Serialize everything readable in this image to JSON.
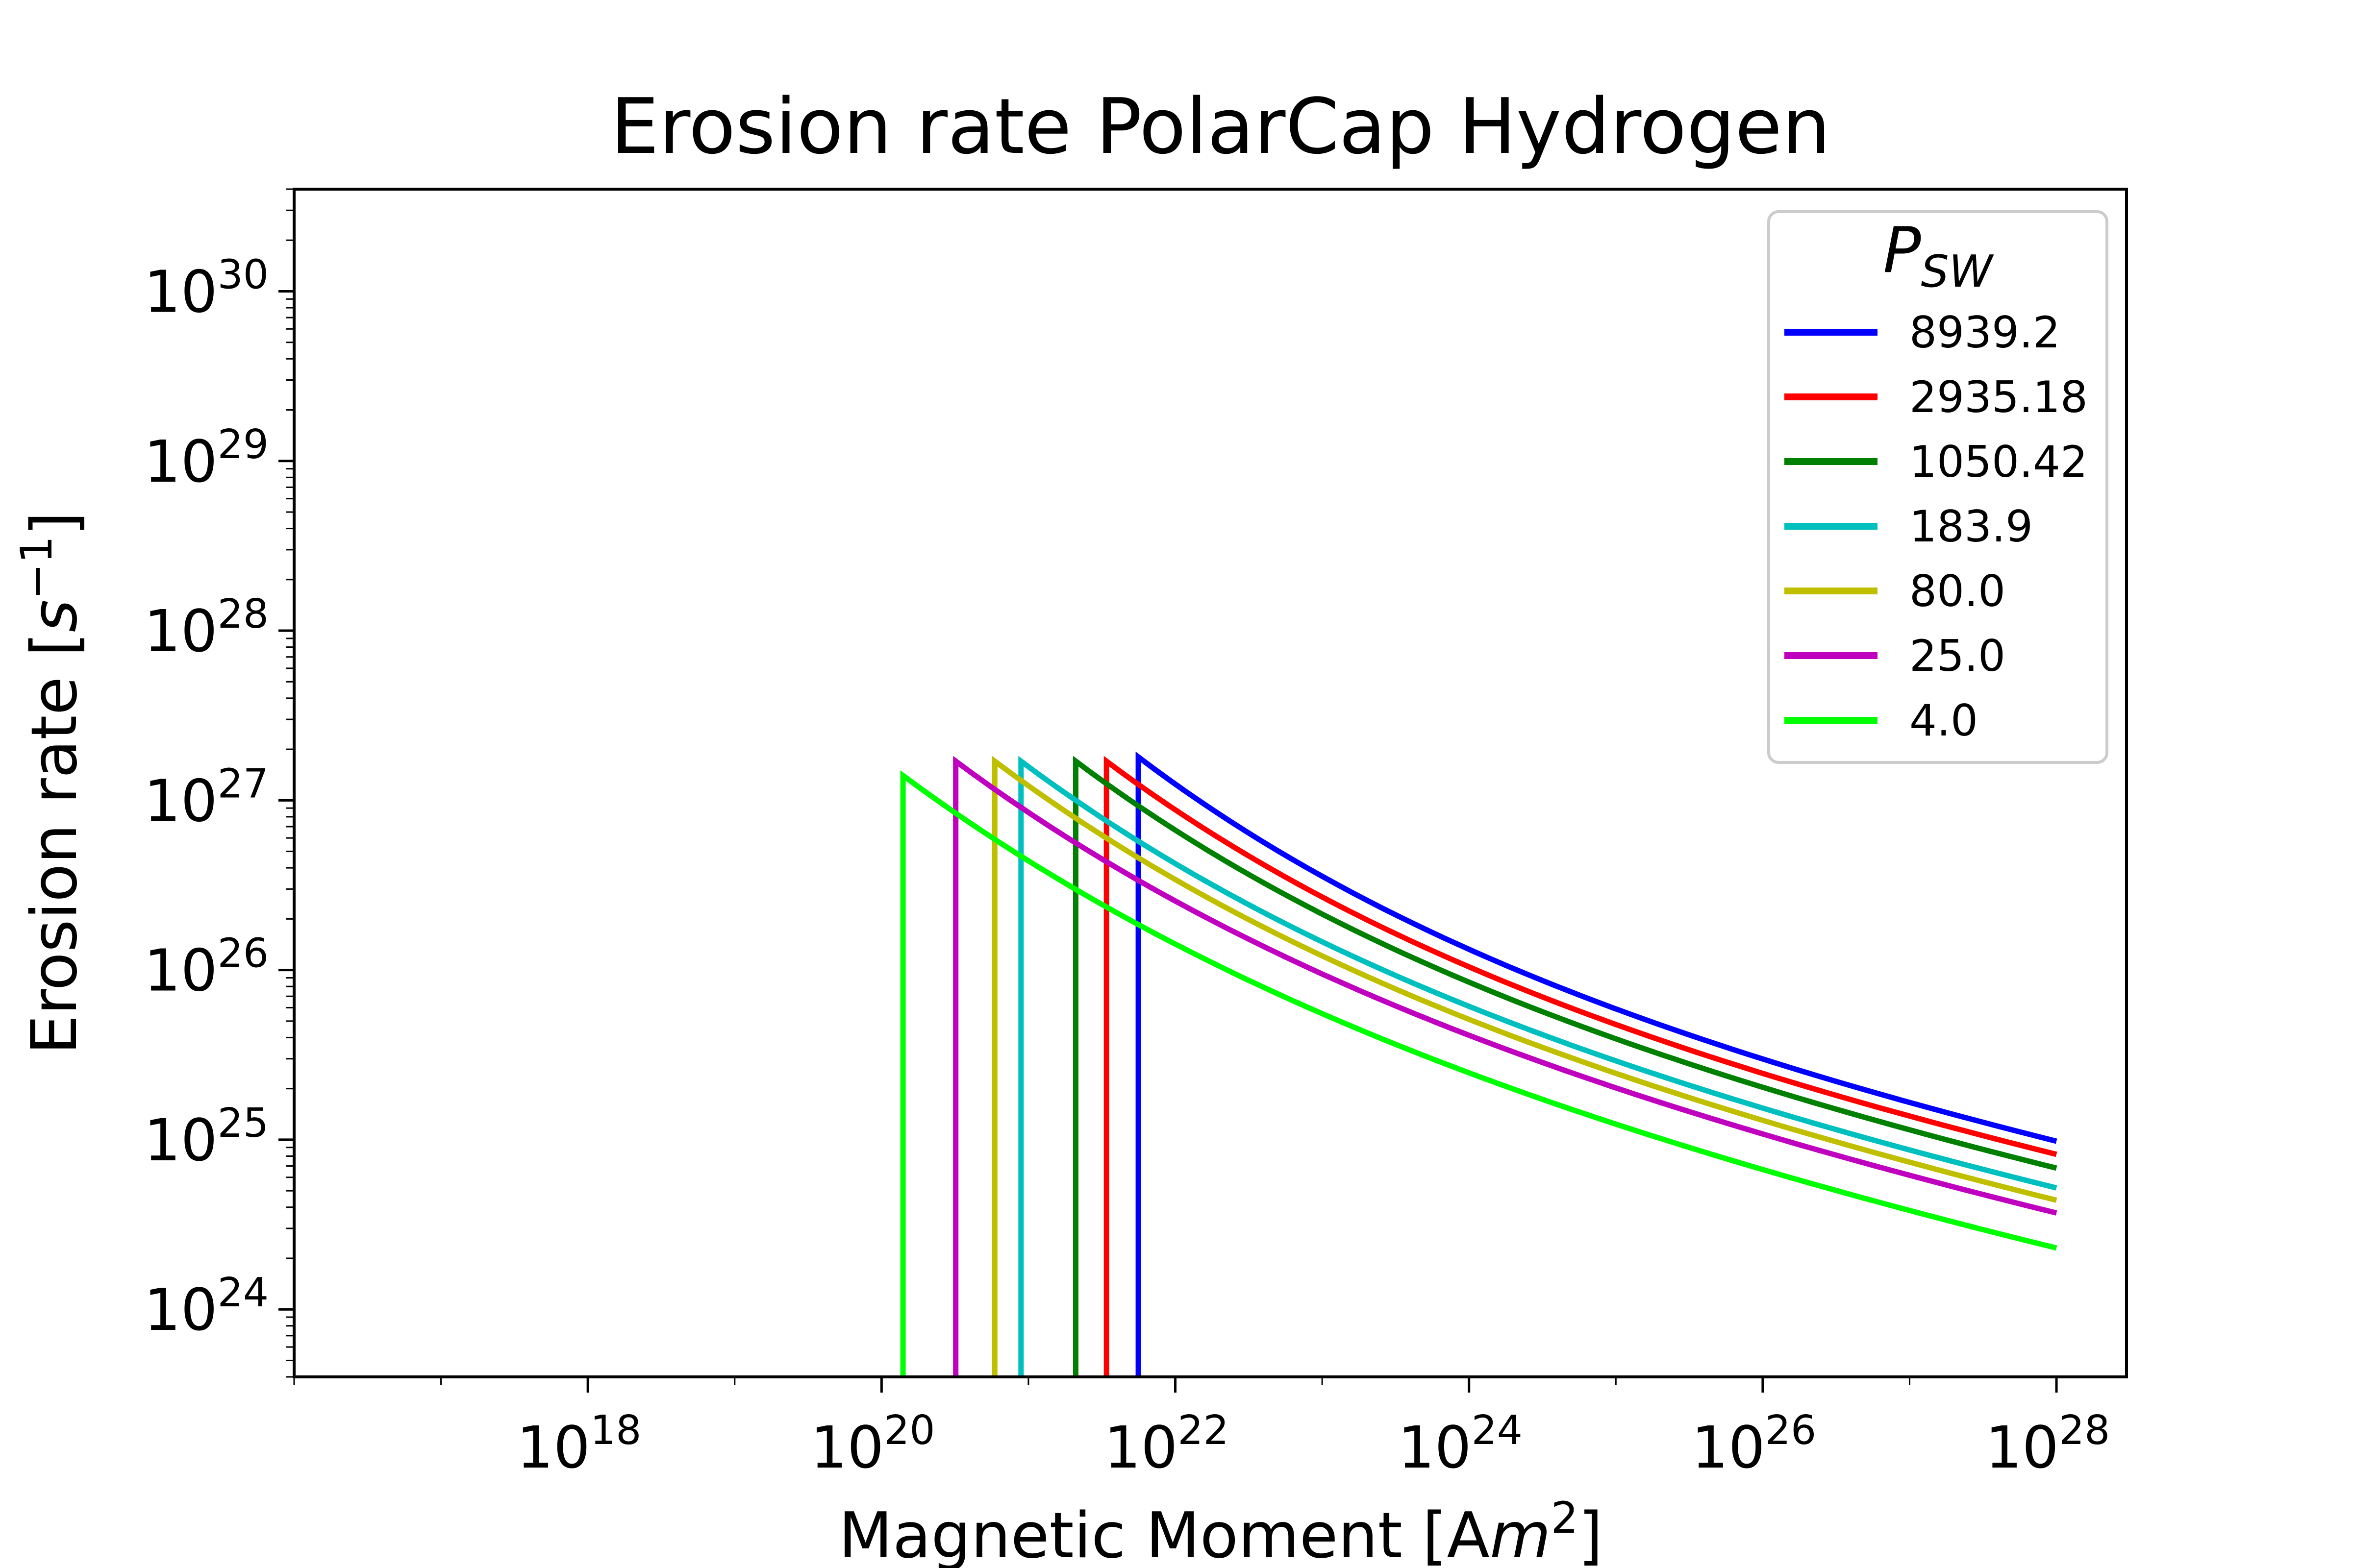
{
  "chart_data": {
    "type": "line",
    "title": "Erosion rate PolarCap Hydrogen",
    "xlabel": {
      "text": "Magnetic Moment [A",
      "italic": "m",
      "sup": "2",
      "close": "]"
    },
    "ylabel": {
      "text": "Erosion rate [",
      "italic": "s",
      "sup": "−1",
      "close": "]"
    },
    "x_scale": "log",
    "y_scale": "log",
    "xlim": [
      1e+16,
      3e+28
    ],
    "ylim": [
      4e+23,
      4e+30
    ],
    "x_ticks": [
      {
        "value": 1e+18,
        "base": "10",
        "exp": "18"
      },
      {
        "value": 1e+20,
        "base": "10",
        "exp": "20"
      },
      {
        "value": 1e+22,
        "base": "10",
        "exp": "22"
      },
      {
        "value": 1e+24,
        "base": "10",
        "exp": "24"
      },
      {
        "value": 1e+26,
        "base": "10",
        "exp": "26"
      },
      {
        "value": 1e+28,
        "base": "10",
        "exp": "28"
      }
    ],
    "y_ticks": [
      {
        "value": 1e+24,
        "base": "10",
        "exp": "24"
      },
      {
        "value": 1e+25,
        "base": "10",
        "exp": "25"
      },
      {
        "value": 1e+26,
        "base": "10",
        "exp": "26"
      },
      {
        "value": 1e+27,
        "base": "10",
        "exp": "27"
      },
      {
        "value": 1e+28,
        "base": "10",
        "exp": "28"
      },
      {
        "value": 1e+29,
        "base": "10",
        "exp": "29"
      },
      {
        "value": 1e+30,
        "base": "10",
        "exp": "30"
      }
    ],
    "grid": false,
    "legend": {
      "title_base": "P",
      "title_sub": "SW",
      "placement": "top-right"
    },
    "series": [
      {
        "name": "8939.2",
        "color": "#0000ff",
        "x_cut": 5.6e+21,
        "y_peak": 1.8e+27,
        "y_end": 9.8e+24
      },
      {
        "name": "2935.18",
        "color": "#ff0000",
        "x_cut": 3.4e+21,
        "y_peak": 1.7e+27,
        "y_end": 8.2e+24
      },
      {
        "name": "1050.42",
        "color": "#008000",
        "x_cut": 2.1e+21,
        "y_peak": 1.7e+27,
        "y_end": 6.8e+24
      },
      {
        "name": "183.9",
        "color": "#00bfbf",
        "x_cut": 8.9e+20,
        "y_peak": 1.7e+27,
        "y_end": 5.2e+24
      },
      {
        "name": "80.0",
        "color": "#bfbf00",
        "x_cut": 5.9e+20,
        "y_peak": 1.7e+27,
        "y_end": 4.4e+24
      },
      {
        "name": "25.0",
        "color": "#bf00bf",
        "x_cut": 3.2e+20,
        "y_peak": 1.7e+27,
        "y_end": 3.7e+24
      },
      {
        "name": "4.0",
        "color": "#00ff00",
        "x_cut": 1.4e+20,
        "y_peak": 1.4e+27,
        "y_end": 2.3e+24
      }
    ],
    "x_end": 1e+28
  }
}
